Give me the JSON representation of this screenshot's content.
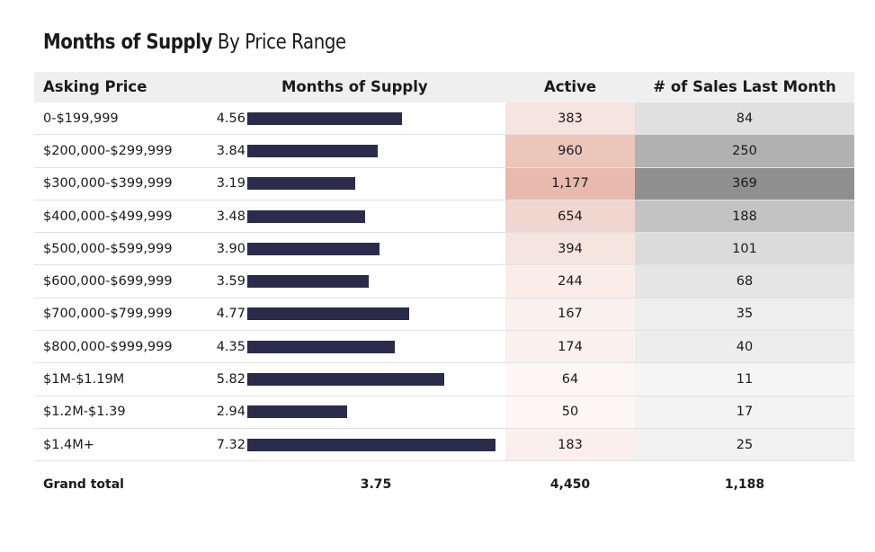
{
  "title_bold": "Months of Supply",
  "title_light": "By Price Range",
  "headers": {
    "asking_price": "Asking Price",
    "months_of_supply": "Months of Supply",
    "active": "Active",
    "sales": "# of Sales Last Month"
  },
  "chart_data": {
    "type": "table",
    "bar_max": 7.32,
    "rows": [
      {
        "label": "0-$199,999",
        "mos": 4.56,
        "mos_label": "4.56",
        "active": 383,
        "active_label": "383",
        "sales": 84,
        "sales_label": "84"
      },
      {
        "label": "$200,000-$299,999",
        "mos": 3.84,
        "mos_label": "3.84",
        "active": 960,
        "active_label": "960",
        "sales": 250,
        "sales_label": "250"
      },
      {
        "label": "$300,000-$399,999",
        "mos": 3.19,
        "mos_label": "3.19",
        "active": 1177,
        "active_label": "1,177",
        "sales": 369,
        "sales_label": "369"
      },
      {
        "label": "$400,000-$499,999",
        "mos": 3.48,
        "mos_label": "3.48",
        "active": 654,
        "active_label": "654",
        "sales": 188,
        "sales_label": "188"
      },
      {
        "label": "$500,000-$599,999",
        "mos": 3.9,
        "mos_label": "3.90",
        "active": 394,
        "active_label": "394",
        "sales": 101,
        "sales_label": "101"
      },
      {
        "label": "$600,000-$699,999",
        "mos": 3.59,
        "mos_label": "3.59",
        "active": 244,
        "active_label": "244",
        "sales": 68,
        "sales_label": "68"
      },
      {
        "label": "$700,000-$799,999",
        "mos": 4.77,
        "mos_label": "4.77",
        "active": 167,
        "active_label": "167",
        "sales": 35,
        "sales_label": "35"
      },
      {
        "label": "$800,000-$999,999",
        "mos": 4.35,
        "mos_label": "4.35",
        "active": 174,
        "active_label": "174",
        "sales": 40,
        "sales_label": "40"
      },
      {
        "label": "$1M-$1.19M",
        "mos": 5.82,
        "mos_label": "5.82",
        "active": 64,
        "active_label": "64",
        "sales": 11,
        "sales_label": "11"
      },
      {
        "label": "$1.2M-$1.39",
        "mos": 2.94,
        "mos_label": "2.94",
        "active": 50,
        "active_label": "50",
        "sales": 17,
        "sales_label": "17"
      },
      {
        "label": "$1.4M+",
        "mos": 7.32,
        "mos_label": "7.32",
        "active": 183,
        "active_label": "183",
        "sales": 25,
        "sales_label": "25"
      }
    ],
    "grand_total": {
      "label": "Grand total",
      "mos": "3.75",
      "active": "4,450",
      "sales": "1,188"
    }
  },
  "colors": {
    "bar": "#2b2b4b",
    "active_heat": "#e8b9ad",
    "sales_heat": "#8f8f8f"
  }
}
